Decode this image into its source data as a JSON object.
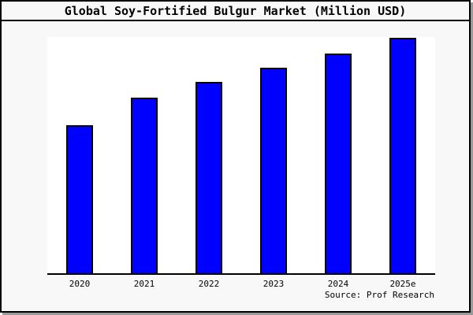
{
  "title": "Global Soy-Fortified Bulgur Market (Million USD)",
  "source_label": "Source: Prof Research",
  "chart_data": {
    "type": "bar",
    "title": "Global Soy-Fortified Bulgur Market (Million USD)",
    "categories": [
      "2020",
      "2021",
      "2022",
      "2023",
      "2024",
      "2025e"
    ],
    "values_pct_of_max": [
      62.5,
      74.5,
      81.3,
      87.3,
      93.3,
      100
    ],
    "note": "No y-axis, ticks, gridlines or value labels are visible; values are bar heights measured relative to the tallest bar (2025e = 100).",
    "xlabel": "",
    "ylabel": "",
    "legend": "none",
    "gridlines": false,
    "source": "Source: Prof Research",
    "colors": {
      "bar_fill": "#0000ff",
      "bar_border": "#000000",
      "plot_background": "#ffffff",
      "figure_background": "#f8f8f8",
      "axis_line": "#000000",
      "text": "#000000"
    }
  }
}
